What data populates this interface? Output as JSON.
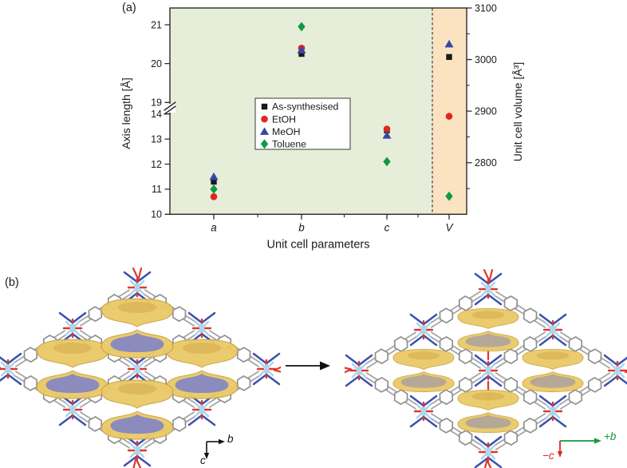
{
  "panel_a": {
    "label": "(a)"
  },
  "chart_data": {
    "type": "scatter",
    "title": "",
    "xlabel": "Unit cell parameters",
    "ylabel_left": "Axis length [Å]",
    "ylabel_right": "Unit cell volume [Å³]",
    "categories": [
      "a",
      "b",
      "c",
      "V"
    ],
    "axis_break_left": [
      14,
      19
    ],
    "left_axis": {
      "ticks_lower": [
        10,
        11,
        12,
        13,
        14
      ],
      "ticks_upper": [
        19,
        20,
        21
      ],
      "ylim_lower": [
        10,
        14
      ],
      "ylim_upper": [
        19,
        21
      ]
    },
    "right_axis": {
      "major_ticks": [
        2800,
        2900,
        3000,
        3100
      ],
      "minor_ticks": [
        2750,
        2850,
        2950,
        3050
      ],
      "range": [
        2700,
        3100
      ]
    },
    "series": [
      {
        "name": "As-synthesised",
        "marker": "square",
        "color": "#1a1a1a",
        "values": {
          "a": 11.3,
          "b": 20.25,
          "c": 13.35
        },
        "volume_A3": 3005
      },
      {
        "name": "EtOH",
        "marker": "circle",
        "color": "#e2251f",
        "values": {
          "a": 10.7,
          "b": 20.4,
          "c": 13.4
        },
        "volume_A3": 2890
      },
      {
        "name": "MeOH",
        "marker": "triangle",
        "color": "#3546a8",
        "values": {
          "a": 11.5,
          "b": 20.35,
          "c": 13.15
        },
        "volume_A3": 3030
      },
      {
        "name": "Toluene",
        "marker": "diamond",
        "color": "#0d9b44",
        "values": {
          "a": 11.0,
          "b": 20.95,
          "c": 12.1
        },
        "volume_A3": 2735
      }
    ],
    "background": {
      "parameters_region": "#e6eed9",
      "volume_region": "#fbe3c2",
      "divider_style": "dashed"
    },
    "legend": {
      "position": "center",
      "entries": [
        "As-synthesised",
        "EtOH",
        "MeOH",
        "Toluene"
      ]
    }
  },
  "panel_b": {
    "label": "(b)",
    "left_orientation": {
      "h_label": "b",
      "v_label": "c",
      "color": "#1a1a1a"
    },
    "right_orientation": {
      "h_label": "+b",
      "h_color": "#169a3d",
      "v_label": "−c",
      "v_color": "#e2251f"
    },
    "structures": {
      "left_blob_style": "tall",
      "right_blob_style": "flat"
    },
    "colors": {
      "linker": "#a3a3a3",
      "ring": "#909090",
      "nitrogen": "#3c50b0",
      "metal": "#a9d6ec",
      "oxygen": "#df382e",
      "blob": "#eac968",
      "blob_edge": "#c6a040",
      "blob_inner": "#d2a84a",
      "blob_shadow": "#8286c4"
    }
  }
}
